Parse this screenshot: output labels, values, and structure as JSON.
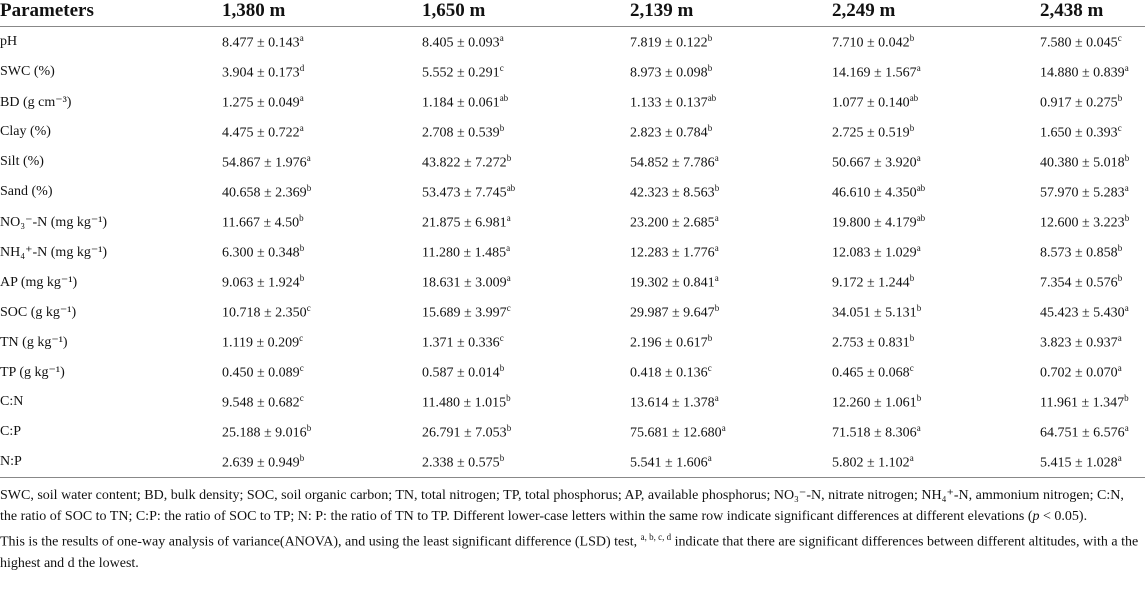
{
  "table": {
    "header": [
      "Parameters",
      "1,380 m",
      "1,650 m",
      "2,139 m",
      "2,249 m",
      "2,438 m"
    ],
    "rows": [
      {
        "label": "pH",
        "cells": [
          {
            "value": "8.477 ± 0.143",
            "sig": "a"
          },
          {
            "value": "8.405 ± 0.093",
            "sig": "a"
          },
          {
            "value": "7.819 ± 0.122",
            "sig": "b"
          },
          {
            "value": "7.710 ± 0.042",
            "sig": "b"
          },
          {
            "value": "7.580 ± 0.045",
            "sig": "c"
          }
        ]
      },
      {
        "label": "SWC (%)",
        "cells": [
          {
            "value": "3.904 ± 0.173",
            "sig": "d"
          },
          {
            "value": "5.552 ± 0.291",
            "sig": "c"
          },
          {
            "value": "8.973 ± 0.098",
            "sig": "b"
          },
          {
            "value": "14.169 ± 1.567",
            "sig": "a"
          },
          {
            "value": "14.880 ± 0.839",
            "sig": "a"
          }
        ]
      },
      {
        "label": "BD (g cm⁻³)",
        "cells": [
          {
            "value": "1.275 ± 0.049",
            "sig": "a"
          },
          {
            "value": "1.184 ± 0.061",
            "sig": "ab"
          },
          {
            "value": "1.133 ± 0.137",
            "sig": "ab"
          },
          {
            "value": "1.077 ± 0.140",
            "sig": "ab"
          },
          {
            "value": "0.917 ± 0.275",
            "sig": "b"
          }
        ]
      },
      {
        "label": "Clay (%)",
        "cells": [
          {
            "value": "4.475 ± 0.722",
            "sig": "a"
          },
          {
            "value": "2.708 ± 0.539",
            "sig": "b"
          },
          {
            "value": "2.823 ± 0.784",
            "sig": "b"
          },
          {
            "value": "2.725 ± 0.519",
            "sig": "b"
          },
          {
            "value": "1.650 ± 0.393",
            "sig": "c"
          }
        ]
      },
      {
        "label": "Silt (%)",
        "cells": [
          {
            "value": "54.867 ± 1.976",
            "sig": "a"
          },
          {
            "value": "43.822 ± 7.272",
            "sig": "b"
          },
          {
            "value": "54.852 ± 7.786",
            "sig": "a"
          },
          {
            "value": "50.667 ± 3.920",
            "sig": "a"
          },
          {
            "value": "40.380 ± 5.018",
            "sig": "b"
          }
        ]
      },
      {
        "label": "Sand (%)",
        "cells": [
          {
            "value": "40.658 ± 2.369",
            "sig": "b"
          },
          {
            "value": "53.473 ± 7.745",
            "sig": "ab"
          },
          {
            "value": "42.323 ± 8.563",
            "sig": "b"
          },
          {
            "value": "46.610 ± 4.350",
            "sig": "ab"
          },
          {
            "value": "57.970 ± 5.283",
            "sig": "a"
          }
        ]
      },
      {
        "label": "NO₃⁻-N (mg kg⁻¹)",
        "cells": [
          {
            "value": "11.667 ± 4.50",
            "sig": "b"
          },
          {
            "value": "21.875 ± 6.981",
            "sig": "a"
          },
          {
            "value": "23.200 ± 2.685",
            "sig": "a"
          },
          {
            "value": "19.800 ± 4.179",
            "sig": "ab"
          },
          {
            "value": "12.600 ± 3.223",
            "sig": "b"
          }
        ]
      },
      {
        "label": "NH₄⁺-N (mg kg⁻¹)",
        "cells": [
          {
            "value": "6.300 ± 0.348",
            "sig": "b"
          },
          {
            "value": "11.280 ± 1.485",
            "sig": "a"
          },
          {
            "value": "12.283 ± 1.776",
            "sig": "a"
          },
          {
            "value": "12.083 ± 1.029",
            "sig": "a"
          },
          {
            "value": "8.573 ± 0.858",
            "sig": "b"
          }
        ]
      },
      {
        "label": "AP (mg kg⁻¹)",
        "cells": [
          {
            "value": "9.063 ± 1.924",
            "sig": "b"
          },
          {
            "value": "18.631 ± 3.009",
            "sig": "a"
          },
          {
            "value": "19.302 ± 0.841",
            "sig": "a"
          },
          {
            "value": "9.172 ± 1.244",
            "sig": "b"
          },
          {
            "value": "7.354 ± 0.576",
            "sig": "b"
          }
        ]
      },
      {
        "label": "SOC (g kg⁻¹)",
        "cells": [
          {
            "value": "10.718 ± 2.350",
            "sig": "c"
          },
          {
            "value": "15.689 ± 3.997",
            "sig": "c"
          },
          {
            "value": "29.987 ± 9.647",
            "sig": "b"
          },
          {
            "value": "34.051 ± 5.131",
            "sig": "b"
          },
          {
            "value": "45.423 ± 5.430",
            "sig": "a"
          }
        ]
      },
      {
        "label": "TN (g kg⁻¹)",
        "cells": [
          {
            "value": "1.119 ± 0.209",
            "sig": "c"
          },
          {
            "value": "1.371 ± 0.336",
            "sig": "c"
          },
          {
            "value": "2.196 ± 0.617",
            "sig": "b"
          },
          {
            "value": "2.753 ± 0.831",
            "sig": "b"
          },
          {
            "value": "3.823 ± 0.937",
            "sig": "a"
          }
        ]
      },
      {
        "label": "TP (g kg⁻¹)",
        "cells": [
          {
            "value": "0.450 ± 0.089",
            "sig": "c"
          },
          {
            "value": "0.587 ± 0.014",
            "sig": "b"
          },
          {
            "value": "0.418 ± 0.136",
            "sig": "c"
          },
          {
            "value": "0.465 ± 0.068",
            "sig": "c"
          },
          {
            "value": "0.702 ± 0.070",
            "sig": "a"
          }
        ]
      },
      {
        "label": "C:N",
        "cells": [
          {
            "value": "9.548 ± 0.682",
            "sig": "c"
          },
          {
            "value": "11.480 ± 1.015",
            "sig": "b"
          },
          {
            "value": "13.614 ± 1.378",
            "sig": "a"
          },
          {
            "value": "12.260 ± 1.061",
            "sig": "b"
          },
          {
            "value": "11.961 ± 1.347",
            "sig": "b"
          }
        ]
      },
      {
        "label": "C:P",
        "cells": [
          {
            "value": "25.188 ± 9.016",
            "sig": "b"
          },
          {
            "value": "26.791 ± 7.053",
            "sig": "b"
          },
          {
            "value": "75.681 ± 12.680",
            "sig": "a"
          },
          {
            "value": "71.518 ± 8.306",
            "sig": "a"
          },
          {
            "value": "64.751 ± 6.576",
            "sig": "a"
          }
        ]
      },
      {
        "label": "N:P",
        "cells": [
          {
            "value": "2.639 ± 0.949",
            "sig": "b"
          },
          {
            "value": "2.338 ± 0.575",
            "sig": "b"
          },
          {
            "value": "5.541 ± 1.606",
            "sig": "a"
          },
          {
            "value": "5.802 ± 1.102",
            "sig": "a"
          },
          {
            "value": "5.415 ± 1.028",
            "sig": "a"
          }
        ]
      }
    ]
  },
  "notes": [
    {
      "before": "SWC, soil water content; BD, bulk density; SOC, soil organic carbon; TN, total nitrogen; TP, total phosphorus; AP, available phosphorus; NO₃⁻-N, nitrate nitrogen; NH₄⁺-N, ammonium nitrogen; C:N, the ratio of SOC to TN; C:P: the ratio of SOC to TP; N: P: the ratio of TN to TP. Different lower-case letters within the same row indicate significant differences at different elevations (",
      "italic": "p",
      "after": " < 0.05)."
    },
    {
      "before": "This is the results of one-way analysis of variance(ANOVA), and using the least significant difference (LSD) test, ",
      "sup": "a, b, c, d",
      "after": " indicate that there are significant differences between different altitudes, with a the highest and d the lowest."
    }
  ]
}
